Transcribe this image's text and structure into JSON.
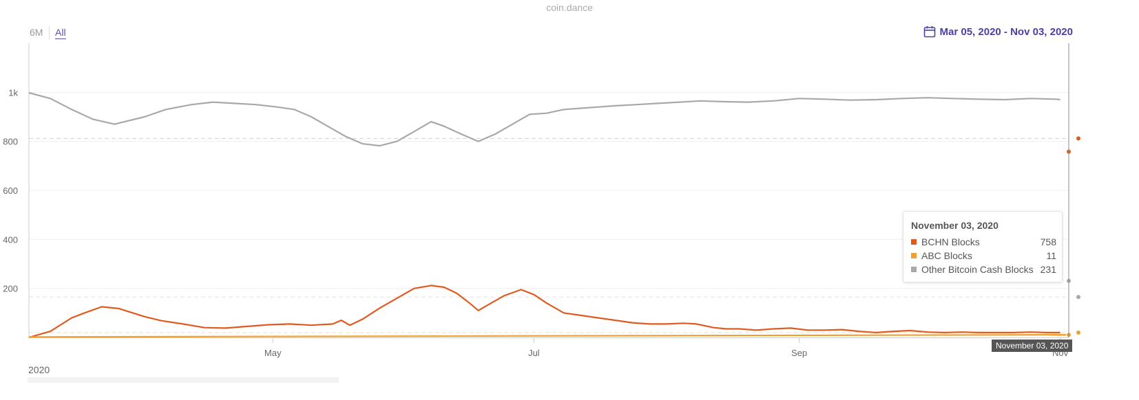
{
  "credit": "coin.dance",
  "range_selector": {
    "btn_6m": "6M",
    "btn_all": "All"
  },
  "date_range": {
    "label": "Mar 05, 2020 - Nov 03, 2020",
    "icon": "calendar-icon",
    "color": "#4a3fa5"
  },
  "navigator": {
    "year_label": "2020"
  },
  "tooltip": {
    "date": "November 03, 2020",
    "rows": [
      {
        "name": "BCHN Blocks",
        "value": "758",
        "color": "#e05a1e"
      },
      {
        "name": "ABC Blocks",
        "value": "11",
        "color": "#f0a030"
      },
      {
        "name": "Other Bitcoin Cash Blocks",
        "value": "231",
        "color": "#a8a8a8"
      }
    ]
  },
  "crosshair_label": "November 03, 2020",
  "chart_data": {
    "type": "line",
    "title": "",
    "xlabel": "",
    "ylabel": "",
    "x_range": [
      "2020-03-05",
      "2020-11-03"
    ],
    "ylim": [
      0,
      1200
    ],
    "y_ticks": [
      {
        "value": 200,
        "label": "200"
      },
      {
        "value": 400,
        "label": "400"
      },
      {
        "value": 600,
        "label": "600"
      },
      {
        "value": 800,
        "label": "800"
      },
      {
        "value": 1000,
        "label": "1k"
      }
    ],
    "x_ticks": [
      {
        "date": "2020-05-01",
        "label": "May"
      },
      {
        "date": "2020-07-01",
        "label": "Jul"
      },
      {
        "date": "2020-09-01",
        "label": "Sep"
      },
      {
        "date": "2020-11-01",
        "label": "Nov"
      }
    ],
    "grid": true,
    "plot_lines": [
      {
        "value": 812,
        "color": "#e05a1e"
      },
      {
        "value": 165,
        "color": "#a8a8a8"
      },
      {
        "value": 20,
        "color": "#f0a030"
      }
    ],
    "series": [
      {
        "name": "BCHN Blocks",
        "color": "#e05a1e",
        "end_value": 758,
        "points": [
          [
            "2020-03-05",
            0
          ],
          [
            "2020-03-10",
            25
          ],
          [
            "2020-03-15",
            80
          ],
          [
            "2020-03-18",
            100
          ],
          [
            "2020-03-22",
            125
          ],
          [
            "2020-03-26",
            118
          ],
          [
            "2020-04-01",
            85
          ],
          [
            "2020-04-05",
            68
          ],
          [
            "2020-04-10",
            55
          ],
          [
            "2020-04-15",
            40
          ],
          [
            "2020-04-20",
            38
          ],
          [
            "2020-04-25",
            45
          ],
          [
            "2020-04-30",
            52
          ],
          [
            "2020-05-05",
            55
          ],
          [
            "2020-05-10",
            50
          ],
          [
            "2020-05-15",
            55
          ],
          [
            "2020-05-17",
            70
          ],
          [
            "2020-05-19",
            50
          ],
          [
            "2020-05-22",
            75
          ],
          [
            "2020-05-26",
            120
          ],
          [
            "2020-05-30",
            160
          ],
          [
            "2020-06-03",
            200
          ],
          [
            "2020-06-07",
            212
          ],
          [
            "2020-06-10",
            205
          ],
          [
            "2020-06-13",
            180
          ],
          [
            "2020-06-16",
            140
          ],
          [
            "2020-06-18",
            110
          ],
          [
            "2020-06-21",
            140
          ],
          [
            "2020-06-24",
            170
          ],
          [
            "2020-06-28",
            195
          ],
          [
            "2020-07-01",
            175
          ],
          [
            "2020-07-04",
            140
          ],
          [
            "2020-07-08",
            100
          ],
          [
            "2020-07-12",
            90
          ],
          [
            "2020-07-16",
            80
          ],
          [
            "2020-07-20",
            70
          ],
          [
            "2020-07-24",
            60
          ],
          [
            "2020-07-28",
            55
          ],
          [
            "2020-08-01",
            55
          ],
          [
            "2020-08-05",
            58
          ],
          [
            "2020-08-08",
            55
          ],
          [
            "2020-08-12",
            40
          ],
          [
            "2020-08-15",
            35
          ],
          [
            "2020-08-18",
            35
          ],
          [
            "2020-08-22",
            30
          ],
          [
            "2020-08-26",
            35
          ],
          [
            "2020-08-30",
            38
          ],
          [
            "2020-09-03",
            30
          ],
          [
            "2020-09-07",
            30
          ],
          [
            "2020-09-11",
            32
          ],
          [
            "2020-09-15",
            25
          ],
          [
            "2020-09-19",
            20
          ],
          [
            "2020-09-23",
            25
          ],
          [
            "2020-09-27",
            28
          ],
          [
            "2020-10-01",
            22
          ],
          [
            "2020-10-05",
            20
          ],
          [
            "2020-10-09",
            22
          ],
          [
            "2020-10-13",
            20
          ],
          [
            "2020-10-17",
            20
          ],
          [
            "2020-10-21",
            20
          ],
          [
            "2020-10-25",
            22
          ],
          [
            "2020-10-29",
            20
          ],
          [
            "2020-11-01",
            20
          ]
        ]
      },
      {
        "name": "ABC Blocks",
        "color": "#f0a030",
        "end_value": 11,
        "points": [
          [
            "2020-03-05",
            2
          ],
          [
            "2020-11-03",
            11
          ]
        ]
      },
      {
        "name": "Other Bitcoin Cash Blocks",
        "color": "#a8a8a8",
        "end_value": 231,
        "points": [
          [
            "2020-03-05",
            998
          ],
          [
            "2020-03-10",
            975
          ],
          [
            "2020-03-15",
            930
          ],
          [
            "2020-03-20",
            890
          ],
          [
            "2020-03-25",
            870
          ],
          [
            "2020-04-01",
            900
          ],
          [
            "2020-04-06",
            930
          ],
          [
            "2020-04-12",
            950
          ],
          [
            "2020-04-17",
            960
          ],
          [
            "2020-04-22",
            955
          ],
          [
            "2020-04-27",
            950
          ],
          [
            "2020-05-02",
            940
          ],
          [
            "2020-05-06",
            930
          ],
          [
            "2020-05-10",
            900
          ],
          [
            "2020-05-14",
            860
          ],
          [
            "2020-05-18",
            820
          ],
          [
            "2020-05-22",
            790
          ],
          [
            "2020-05-26",
            782
          ],
          [
            "2020-05-30",
            800
          ],
          [
            "2020-06-03",
            840
          ],
          [
            "2020-06-07",
            880
          ],
          [
            "2020-06-10",
            862
          ],
          [
            "2020-06-14",
            830
          ],
          [
            "2020-06-18",
            800
          ],
          [
            "2020-06-22",
            830
          ],
          [
            "2020-06-26",
            870
          ],
          [
            "2020-06-30",
            910
          ],
          [
            "2020-07-04",
            915
          ],
          [
            "2020-07-08",
            930
          ],
          [
            "2020-07-12",
            935
          ],
          [
            "2020-07-16",
            940
          ],
          [
            "2020-07-20",
            945
          ],
          [
            "2020-07-25",
            950
          ],
          [
            "2020-07-30",
            955
          ],
          [
            "2020-08-04",
            960
          ],
          [
            "2020-08-09",
            965
          ],
          [
            "2020-08-14",
            962
          ],
          [
            "2020-08-20",
            960
          ],
          [
            "2020-08-26",
            965
          ],
          [
            "2020-09-01",
            975
          ],
          [
            "2020-09-07",
            972
          ],
          [
            "2020-09-13",
            968
          ],
          [
            "2020-09-19",
            970
          ],
          [
            "2020-09-25",
            975
          ],
          [
            "2020-10-01",
            978
          ],
          [
            "2020-10-07",
            975
          ],
          [
            "2020-10-13",
            972
          ],
          [
            "2020-10-19",
            970
          ],
          [
            "2020-10-25",
            975
          ],
          [
            "2020-10-31",
            972
          ],
          [
            "2020-11-01",
            970
          ]
        ]
      }
    ]
  }
}
